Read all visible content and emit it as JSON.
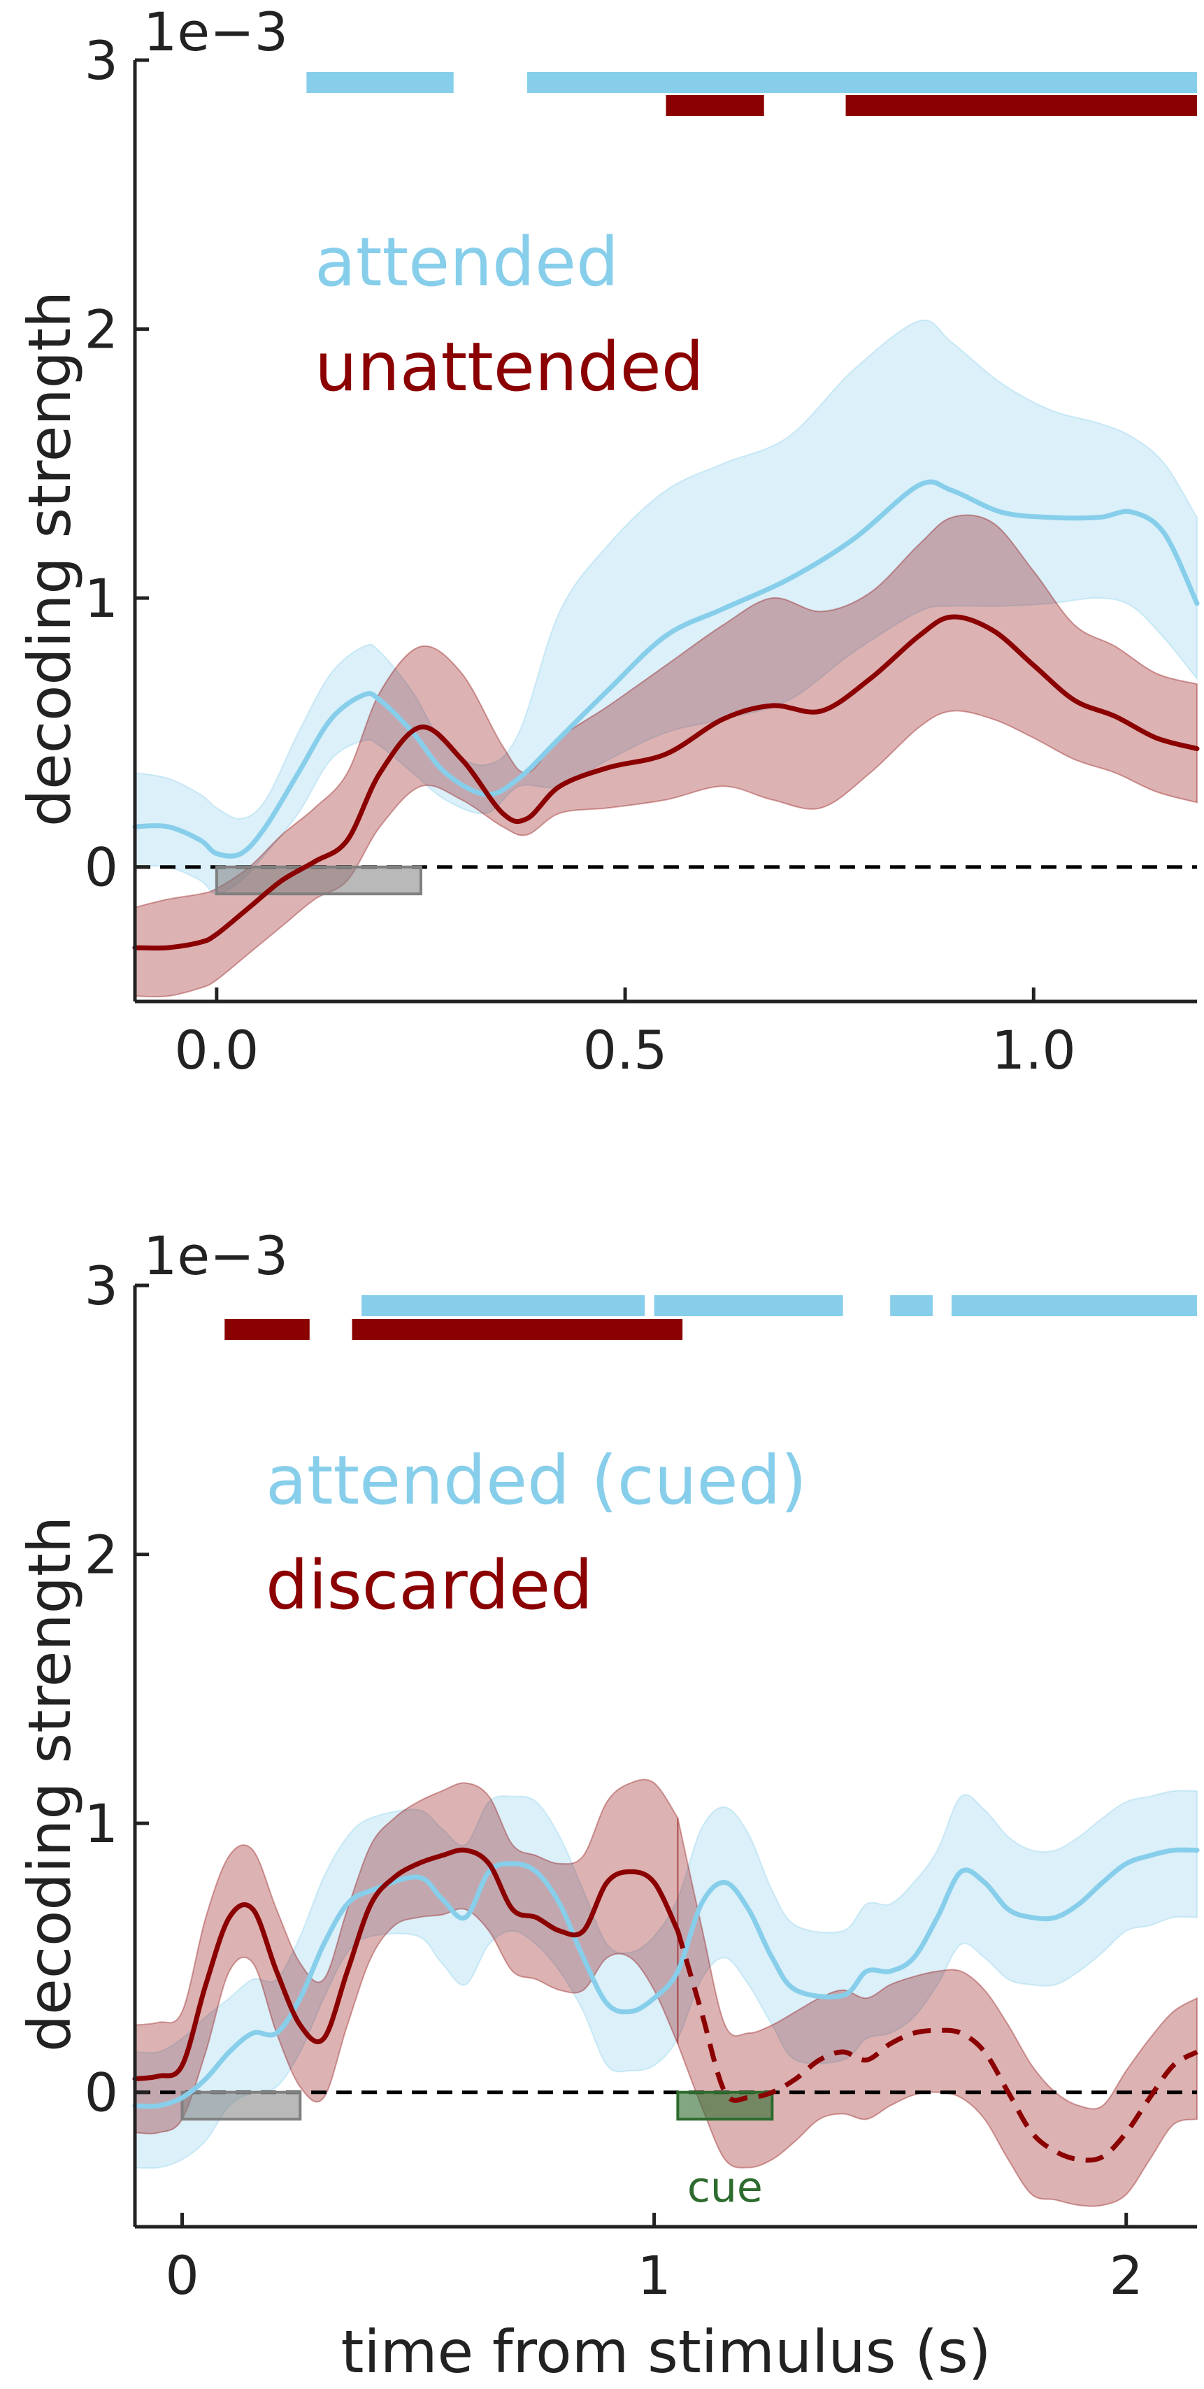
{
  "colors": {
    "attended": "#87CEEB",
    "unattended": "#8B0000",
    "window": "#808080",
    "cue": "#2e6b2e",
    "axis": "#222222"
  },
  "chart_data": [
    {
      "type": "line",
      "xlabel": "",
      "ylabel": "decoding strength",
      "y_scale_label": "1e−3",
      "xlim": [
        -0.1,
        1.2
      ],
      "ylim": [
        -0.5,
        3.0
      ],
      "xticks": [
        0.0,
        0.5,
        1.0
      ],
      "xtick_labels": [
        "0.0",
        "0.5",
        "1.0"
      ],
      "yticks": [
        0,
        1,
        2,
        3
      ],
      "ytick_labels": [
        "0",
        "1",
        "2",
        "3"
      ],
      "legend": [
        "attended",
        "unattended"
      ],
      "legend_position": "upper-left",
      "zero_line": true,
      "stimulus_window": {
        "x0": 0.0,
        "x1": 0.25,
        "y0": -0.1,
        "y1": 0.0
      },
      "series": [
        {
          "name": "attended",
          "x": [
            -0.1,
            -0.06,
            -0.02,
            0.0,
            0.03,
            0.06,
            0.1,
            0.14,
            0.18,
            0.2,
            0.24,
            0.28,
            0.33,
            0.37,
            0.42,
            0.48,
            0.55,
            0.62,
            0.7,
            0.78,
            0.86,
            0.9,
            0.96,
            1.02,
            1.08,
            1.12,
            1.16,
            1.2
          ],
          "y": [
            0.15,
            0.15,
            0.1,
            0.05,
            0.05,
            0.15,
            0.35,
            0.55,
            0.64,
            0.62,
            0.5,
            0.35,
            0.27,
            0.33,
            0.48,
            0.66,
            0.86,
            0.96,
            1.07,
            1.22,
            1.42,
            1.4,
            1.32,
            1.3,
            1.3,
            1.32,
            1.24,
            0.98
          ],
          "ci_lower": [
            0.0,
            0.0,
            -0.05,
            -0.1,
            -0.05,
            0.05,
            0.2,
            0.4,
            0.47,
            0.45,
            0.35,
            0.25,
            0.2,
            0.3,
            0.3,
            0.4,
            0.5,
            0.55,
            0.62,
            0.8,
            0.95,
            0.97,
            0.97,
            0.98,
            1.0,
            0.97,
            0.85,
            0.7
          ],
          "ci_upper": [
            0.35,
            0.33,
            0.27,
            0.22,
            0.18,
            0.25,
            0.5,
            0.72,
            0.82,
            0.8,
            0.65,
            0.45,
            0.38,
            0.5,
            0.95,
            1.2,
            1.4,
            1.5,
            1.6,
            1.85,
            2.03,
            1.95,
            1.8,
            1.7,
            1.65,
            1.6,
            1.5,
            1.3
          ]
        },
        {
          "name": "unattended",
          "x": [
            -0.1,
            -0.06,
            -0.02,
            0.0,
            0.04,
            0.08,
            0.12,
            0.16,
            0.2,
            0.25,
            0.3,
            0.35,
            0.38,
            0.42,
            0.48,
            0.55,
            0.62,
            0.68,
            0.74,
            0.8,
            0.86,
            0.9,
            0.95,
            1.0,
            1.05,
            1.1,
            1.15,
            1.2
          ],
          "y": [
            -0.3,
            -0.3,
            -0.28,
            -0.25,
            -0.15,
            -0.05,
            0.02,
            0.1,
            0.35,
            0.52,
            0.4,
            0.2,
            0.18,
            0.3,
            0.37,
            0.42,
            0.55,
            0.6,
            0.58,
            0.7,
            0.86,
            0.93,
            0.88,
            0.75,
            0.62,
            0.56,
            0.48,
            0.44
          ],
          "ci_lower": [
            -0.48,
            -0.48,
            -0.45,
            -0.42,
            -0.32,
            -0.22,
            -0.12,
            -0.05,
            0.15,
            0.3,
            0.25,
            0.15,
            0.12,
            0.2,
            0.22,
            0.25,
            0.3,
            0.25,
            0.22,
            0.35,
            0.52,
            0.58,
            0.55,
            0.48,
            0.4,
            0.35,
            0.28,
            0.24
          ],
          "ci_upper": [
            -0.15,
            -0.12,
            -0.1,
            -0.08,
            0.0,
            0.12,
            0.22,
            0.35,
            0.65,
            0.82,
            0.72,
            0.45,
            0.35,
            0.48,
            0.6,
            0.75,
            0.9,
            1.0,
            0.95,
            1.02,
            1.2,
            1.3,
            1.28,
            1.1,
            0.9,
            0.82,
            0.72,
            0.68
          ]
        }
      ],
      "significance_bars": [
        {
          "series": "attended",
          "level": "top",
          "ranges": [
            [
              0.11,
              0.29
            ],
            [
              0.38,
              1.2
            ]
          ]
        },
        {
          "series": "unattended",
          "level": "second",
          "ranges": [
            [
              0.55,
              0.67
            ],
            [
              0.77,
              1.2
            ]
          ]
        }
      ]
    },
    {
      "type": "line",
      "xlabel": "time from stimulus (s)",
      "ylabel": "decoding strength",
      "y_scale_label": "1e−3",
      "xlim": [
        -0.1,
        2.15
      ],
      "ylim": [
        -0.5,
        3.0
      ],
      "xticks": [
        0,
        1,
        2
      ],
      "xtick_labels": [
        "0",
        "1",
        "2"
      ],
      "yticks": [
        0,
        1,
        2,
        3
      ],
      "ytick_labels": [
        "0",
        "1",
        "2",
        "3"
      ],
      "legend": [
        "attended (cued)",
        "discarded"
      ],
      "legend_position": "upper-left",
      "zero_line": true,
      "stimulus_window": {
        "x0": 0.0,
        "x1": 0.25,
        "y0": -0.1,
        "y1": 0.0
      },
      "cue_window": {
        "x0": 1.05,
        "x1": 1.25,
        "y0": -0.1,
        "y1": 0.0,
        "label": "cue"
      },
      "series": [
        {
          "name": "attended (cued)",
          "x": [
            -0.1,
            -0.05,
            0.0,
            0.05,
            0.1,
            0.15,
            0.2,
            0.25,
            0.3,
            0.35,
            0.4,
            0.5,
            0.55,
            0.6,
            0.65,
            0.7,
            0.75,
            0.8,
            0.85,
            0.9,
            0.95,
            1.0,
            1.05,
            1.1,
            1.15,
            1.2,
            1.25,
            1.3,
            1.4,
            1.45,
            1.5,
            1.55,
            1.6,
            1.65,
            1.7,
            1.75,
            1.8,
            1.85,
            1.9,
            1.95,
            2.0,
            2.05,
            2.1,
            2.15
          ],
          "y": [
            -0.05,
            -0.05,
            -0.02,
            0.05,
            0.15,
            0.22,
            0.22,
            0.35,
            0.55,
            0.7,
            0.75,
            0.8,
            0.72,
            0.65,
            0.82,
            0.85,
            0.82,
            0.7,
            0.5,
            0.33,
            0.3,
            0.35,
            0.45,
            0.7,
            0.78,
            0.68,
            0.5,
            0.38,
            0.36,
            0.45,
            0.45,
            0.5,
            0.65,
            0.82,
            0.78,
            0.68,
            0.65,
            0.65,
            0.7,
            0.78,
            0.85,
            0.88,
            0.9,
            0.9
          ],
          "ci_lower": [
            -0.28,
            -0.28,
            -0.25,
            -0.18,
            -0.05,
            0.0,
            0.02,
            0.15,
            0.35,
            0.52,
            0.58,
            0.58,
            0.48,
            0.4,
            0.55,
            0.6,
            0.55,
            0.45,
            0.3,
            0.1,
            0.08,
            0.1,
            0.2,
            0.42,
            0.5,
            0.4,
            0.25,
            0.12,
            0.12,
            0.2,
            0.22,
            0.28,
            0.4,
            0.55,
            0.5,
            0.42,
            0.4,
            0.4,
            0.45,
            0.52,
            0.6,
            0.62,
            0.65,
            0.65
          ],
          "ci_upper": [
            0.15,
            0.15,
            0.2,
            0.28,
            0.35,
            0.42,
            0.42,
            0.58,
            0.8,
            0.95,
            1.02,
            1.05,
            0.98,
            0.92,
            1.08,
            1.1,
            1.08,
            0.95,
            0.75,
            0.55,
            0.52,
            0.58,
            0.72,
            0.98,
            1.06,
            0.96,
            0.75,
            0.62,
            0.6,
            0.7,
            0.7,
            0.78,
            0.9,
            1.1,
            1.05,
            0.95,
            0.9,
            0.9,
            0.95,
            1.02,
            1.08,
            1.1,
            1.12,
            1.12
          ]
        },
        {
          "name": "discarded",
          "x": [
            -0.1,
            -0.05,
            0.0,
            0.05,
            0.1,
            0.15,
            0.2,
            0.25,
            0.3,
            0.35,
            0.4,
            0.45,
            0.5,
            0.55,
            0.6,
            0.65,
            0.7,
            0.75,
            0.8,
            0.85,
            0.9,
            0.95,
            1.0,
            1.05
          ],
          "y": [
            0.05,
            0.06,
            0.1,
            0.4,
            0.65,
            0.68,
            0.45,
            0.25,
            0.2,
            0.45,
            0.7,
            0.8,
            0.85,
            0.88,
            0.9,
            0.85,
            0.68,
            0.65,
            0.6,
            0.6,
            0.78,
            0.82,
            0.78,
            0.6
          ],
          "ci_lower": [
            -0.15,
            -0.15,
            -0.1,
            0.15,
            0.45,
            0.48,
            0.22,
            0.02,
            -0.02,
            0.25,
            0.5,
            0.62,
            0.65,
            0.66,
            0.68,
            0.6,
            0.45,
            0.42,
            0.38,
            0.38,
            0.5,
            0.5,
            0.38,
            0.18
          ],
          "ci_upper": [
            0.25,
            0.26,
            0.3,
            0.65,
            0.88,
            0.9,
            0.68,
            0.48,
            0.42,
            0.68,
            0.92,
            1.02,
            1.08,
            1.12,
            1.15,
            1.1,
            0.92,
            0.88,
            0.85,
            0.88,
            1.08,
            1.15,
            1.15,
            1.02
          ],
          "continuation": {
            "style": "dashed",
            "x": [
              1.05,
              1.1,
              1.15,
              1.2,
              1.25,
              1.3,
              1.35,
              1.4,
              1.45,
              1.5,
              1.55,
              1.6,
              1.65,
              1.7,
              1.75,
              1.8,
              1.85,
              1.9,
              1.95,
              2.0,
              2.05,
              2.1,
              2.15
            ],
            "y": [
              0.6,
              0.3,
              0.0,
              -0.02,
              0.0,
              0.05,
              0.12,
              0.15,
              0.12,
              0.18,
              0.22,
              0.23,
              0.22,
              0.15,
              0.0,
              -0.15,
              -0.22,
              -0.25,
              -0.24,
              -0.15,
              -0.02,
              0.1,
              0.15
            ],
            "ci_lower": [
              0.18,
              -0.05,
              -0.25,
              -0.28,
              -0.25,
              -0.18,
              -0.1,
              -0.08,
              -0.1,
              -0.05,
              -0.01,
              0.0,
              -0.02,
              -0.1,
              -0.25,
              -0.38,
              -0.4,
              -0.42,
              -0.42,
              -0.38,
              -0.25,
              -0.12,
              -0.1
            ],
            "ci_upper": [
              1.02,
              0.62,
              0.25,
              0.22,
              0.25,
              0.3,
              0.35,
              0.38,
              0.35,
              0.4,
              0.43,
              0.45,
              0.45,
              0.38,
              0.25,
              0.1,
              0.0,
              -0.05,
              -0.05,
              0.08,
              0.2,
              0.3,
              0.35
            ]
          }
        }
      ],
      "significance_bars": [
        {
          "series": "attended (cued)",
          "level": "top",
          "ranges": [
            [
              0.38,
              0.98
            ],
            [
              1.0,
              1.4
            ],
            [
              1.5,
              1.59
            ],
            [
              1.63,
              2.15
            ]
          ]
        },
        {
          "series": "discarded",
          "level": "second",
          "ranges": [
            [
              0.09,
              0.27
            ],
            [
              0.36,
              1.06
            ]
          ]
        }
      ]
    }
  ]
}
